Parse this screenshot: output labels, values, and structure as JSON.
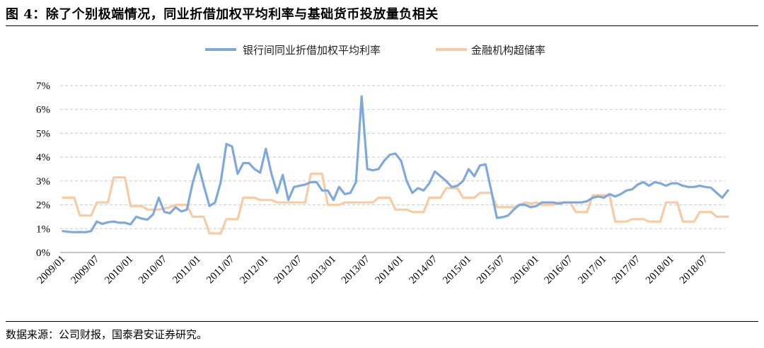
{
  "figure": {
    "title": "图 4：除了个别极端情况，同业折借加权平均利率与基础货币投放量负相关",
    "source": "数据来源：公司财报，国泰君安证券研究。"
  },
  "chart_data": {
    "type": "line",
    "title": "",
    "xlabel": "",
    "ylabel": "",
    "ylim": [
      0,
      7
    ],
    "y_ticks": [
      "0%",
      "1%",
      "2%",
      "3%",
      "4%",
      "5%",
      "6%",
      "7%"
    ],
    "x_tick_labels": [
      "2009/01",
      "2009/07",
      "2010/01",
      "2010/07",
      "2011/01",
      "2011/07",
      "2012/01",
      "2012/07",
      "2013/01",
      "2013/07",
      "2014/01",
      "2014/07",
      "2015/01",
      "2015/07",
      "2016/01",
      "2016/07",
      "2017/01",
      "2017/07",
      "2018/01",
      "2018/07"
    ],
    "x_start": "2009/01",
    "x_end": "2018/10",
    "grid": "horizontal dashed",
    "legend_position": "top",
    "series": [
      {
        "name": "银行间同业折借加权平均利率",
        "color": "#7fa9dc",
        "values": [
          0.9,
          0.87,
          0.85,
          0.86,
          0.85,
          0.9,
          1.3,
          1.2,
          1.27,
          1.3,
          1.25,
          1.25,
          1.18,
          1.5,
          1.42,
          1.38,
          1.6,
          2.3,
          1.7,
          1.65,
          1.9,
          1.72,
          1.8,
          2.9,
          3.7,
          2.8,
          1.95,
          2.1,
          2.95,
          4.55,
          4.45,
          3.3,
          3.75,
          3.75,
          3.5,
          3.35,
          4.35,
          3.3,
          2.5,
          3.25,
          2.2,
          2.75,
          2.8,
          2.85,
          2.95,
          2.95,
          2.6,
          2.6,
          2.2,
          2.75,
          2.45,
          2.5,
          2.95,
          6.55,
          3.5,
          3.45,
          3.5,
          3.85,
          4.1,
          4.15,
          3.85,
          3.0,
          2.5,
          2.7,
          2.6,
          2.9,
          3.4,
          3.2,
          3.0,
          2.75,
          2.8,
          3.0,
          3.5,
          3.2,
          3.65,
          3.7,
          2.6,
          1.45,
          1.48,
          1.55,
          1.8,
          2.0,
          2.0,
          1.9,
          1.95,
          2.1,
          2.1,
          2.1,
          2.05,
          2.1,
          2.1,
          2.1,
          2.1,
          2.15,
          2.3,
          2.35,
          2.3,
          2.45,
          2.35,
          2.45,
          2.6,
          2.65,
          2.85,
          2.95,
          2.8,
          2.95,
          2.9,
          2.8,
          2.9,
          2.9,
          2.8,
          2.75,
          2.75,
          2.8,
          2.75,
          2.72,
          2.5,
          2.3,
          2.6
        ]
      },
      {
        "name": "金融机构超储率",
        "color": "#f7cba4",
        "values": [
          2.3,
          2.3,
          2.3,
          1.55,
          1.55,
          1.55,
          2.1,
          2.1,
          2.1,
          3.15,
          3.15,
          3.15,
          1.95,
          1.95,
          1.95,
          1.8,
          1.8,
          1.8,
          1.85,
          1.9,
          2.0,
          2.0,
          2.0,
          1.5,
          1.5,
          1.5,
          0.8,
          0.8,
          0.8,
          1.4,
          1.4,
          1.4,
          2.3,
          2.3,
          2.3,
          2.2,
          2.2,
          2.2,
          2.1,
          2.1,
          2.1,
          2.1,
          2.1,
          2.1,
          3.3,
          3.3,
          3.3,
          2.0,
          2.0,
          2.0,
          2.1,
          2.1,
          2.1,
          2.1,
          2.1,
          2.1,
          2.3,
          2.3,
          2.3,
          1.8,
          1.8,
          1.8,
          1.7,
          1.7,
          1.7,
          2.3,
          2.3,
          2.3,
          2.7,
          2.7,
          2.7,
          2.3,
          2.3,
          2.3,
          2.5,
          2.5,
          2.5,
          1.9,
          1.9,
          1.9,
          1.9,
          2.0,
          2.1,
          2.05,
          2.1,
          2.0,
          2.0,
          2.0,
          2.1,
          2.1,
          2.1,
          1.7,
          1.7,
          1.7,
          2.4,
          2.4,
          2.4,
          2.4,
          1.3,
          1.3,
          1.3,
          1.4,
          1.4,
          1.4,
          1.3,
          1.3,
          1.3,
          2.1,
          2.1,
          2.1,
          1.3,
          1.3,
          1.3,
          1.7,
          1.7,
          1.7,
          1.5,
          1.5,
          1.5
        ]
      }
    ]
  }
}
